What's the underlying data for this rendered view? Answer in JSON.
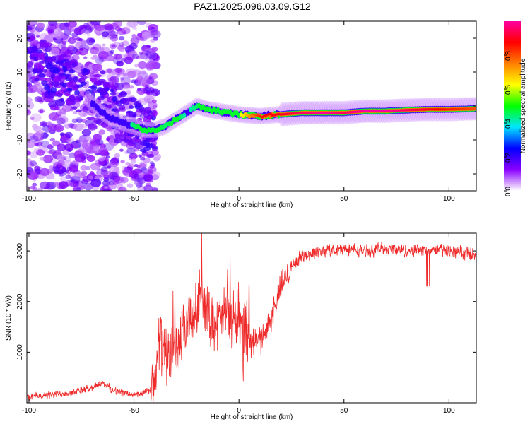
{
  "title": "PAZ1.2025.096.03.09.G12",
  "chart_data": [
    {
      "type": "heatmap",
      "xlabel": "Height of straight line (km)",
      "ylabel": "Frequency (Hz)",
      "xlim": [
        -101,
        113
      ],
      "ylim": [
        -25,
        25
      ],
      "x_ticks": [
        -100,
        -50,
        0,
        50,
        100
      ],
      "y_ticks": [
        -20,
        -10,
        0,
        10,
        20
      ],
      "colorbar": {
        "label": "Normalized spectral amplitude",
        "range": [
          0,
          1
        ],
        "ticks": [
          0.0,
          0.2,
          0.4,
          0.6,
          0.8
        ],
        "colormap": [
          "#ffffff",
          "#8a00ff",
          "#0000ff",
          "#00e5ff",
          "#00ff00",
          "#ffff00",
          "#ff7f00",
          "#ff0000",
          "#ff00a0"
        ]
      },
      "ridge": {
        "x": [
          -72,
          -65,
          -60,
          -55,
          -50,
          -45,
          -40,
          -35,
          -30,
          -25,
          -20,
          -15,
          -10,
          -5,
          0,
          10,
          20,
          30,
          40,
          50,
          60,
          70,
          80,
          90,
          100,
          113
        ],
        "frequency": [
          2,
          -2,
          -4,
          -5,
          -6,
          -7,
          -7,
          -6,
          -4,
          -2,
          0,
          -1,
          -1.5,
          -2,
          -2.5,
          -3,
          -2.5,
          -2,
          -2,
          -2,
          -1.5,
          -1.5,
          -1.2,
          -1,
          -1,
          -0.8
        ],
        "amplitude": [
          0.3,
          0.35,
          0.4,
          0.35,
          0.45,
          0.5,
          0.5,
          0.45,
          0.5,
          0.4,
          0.45,
          0.6,
          0.6,
          0.55,
          0.6,
          0.85,
          0.9,
          0.95,
          1.0,
          0.95,
          1.0,
          1.0,
          0.95,
          0.9,
          0.85,
          0.8
        ]
      }
    },
    {
      "type": "line",
      "xlabel": "Height of straight line (km)",
      "ylabel": "SNR (10 * v/v)",
      "xlim": [
        -101,
        113
      ],
      "ylim": [
        0,
        3350
      ],
      "x_ticks": [
        -100,
        -50,
        0,
        50,
        100
      ],
      "y_ticks": [
        1000,
        2000,
        3000
      ],
      "color": "#ee2a2a",
      "series": [
        {
          "x": [
            -101,
            -90,
            -80,
            -70,
            -65,
            -60,
            -50,
            -45,
            -40,
            -38,
            -35,
            -30,
            -25,
            -20,
            -18,
            -15,
            -10,
            -5,
            -2,
            0,
            2,
            5,
            10,
            15,
            20,
            25,
            30,
            40,
            50,
            60,
            70,
            80,
            90,
            100,
            113
          ],
          "y": [
            120,
            150,
            200,
            300,
            400,
            250,
            150,
            200,
            300,
            1300,
            900,
            1000,
            1500,
            1800,
            2300,
            1700,
            1600,
            1800,
            1500,
            1900,
            1100,
            1200,
            1250,
            1600,
            2300,
            2700,
            2900,
            3000,
            3050,
            3000,
            3050,
            3000,
            3050,
            3000,
            2950
          ]
        }
      ]
    }
  ]
}
